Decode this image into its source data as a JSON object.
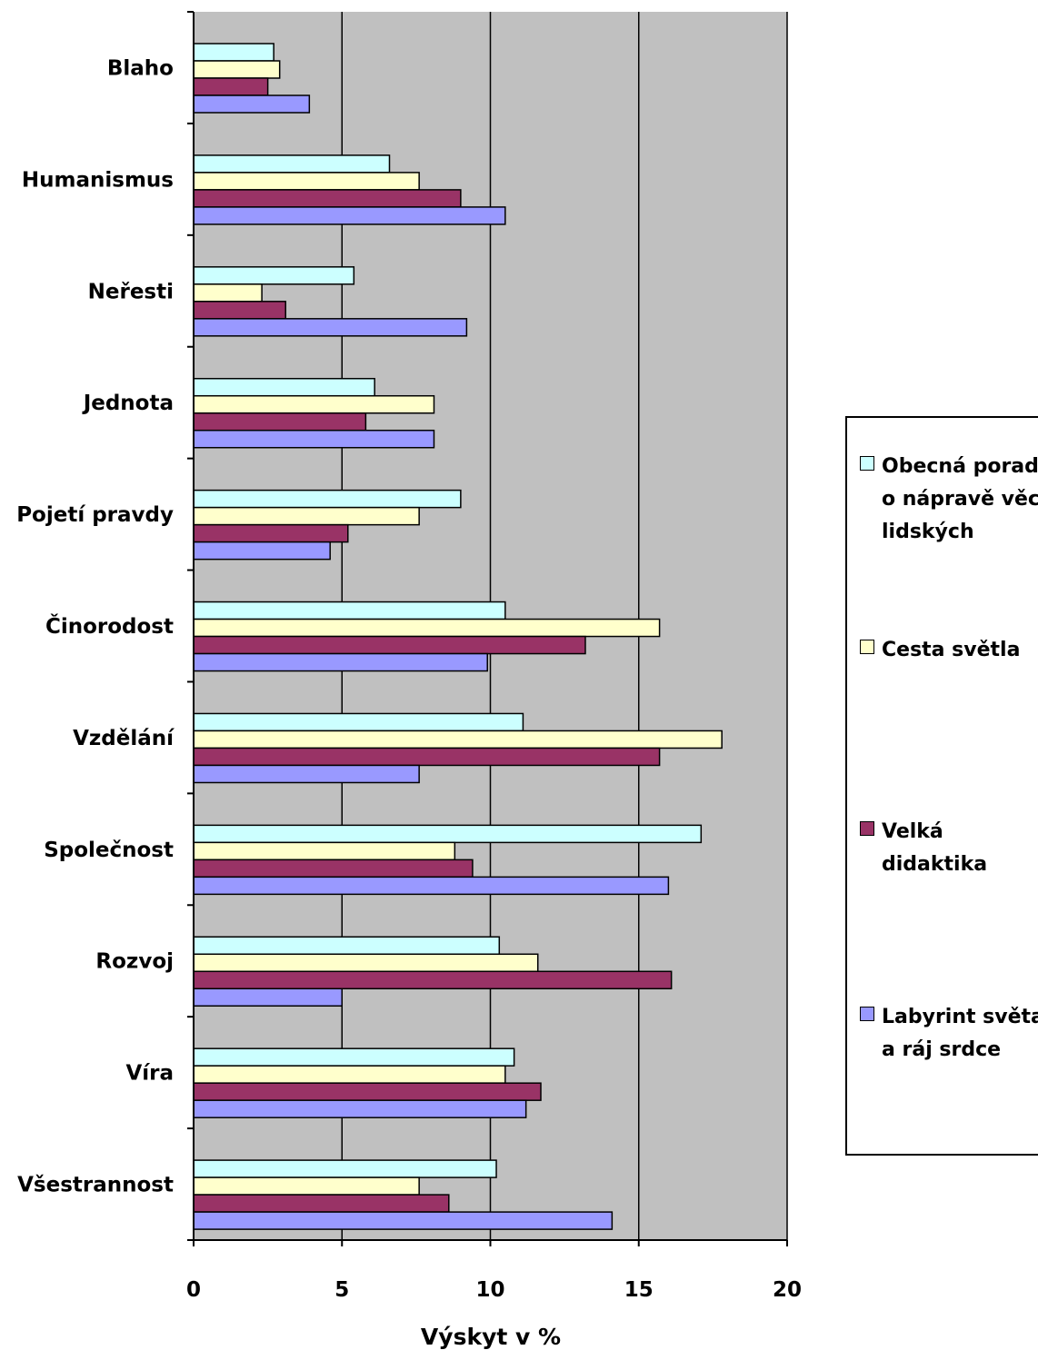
{
  "chart_data": {
    "type": "bar",
    "orientation": "horizontal",
    "categories": [
      "Blaho",
      "Humanismus",
      "Neřesti",
      "Jednota",
      "Pojetí pravdy",
      "Činorodost",
      "Vzdělání",
      "Společnost",
      "Rozvoj",
      "Víra",
      "Všestrannost"
    ],
    "series": [
      {
        "name": "Obecná porada o nápravě věcí lidských",
        "color": "#ccffff",
        "values": [
          2.7,
          6.6,
          5.4,
          6.1,
          9.0,
          10.5,
          11.1,
          17.1,
          10.3,
          10.8,
          10.2
        ]
      },
      {
        "name": "Cesta světla",
        "color": "#ffffcc",
        "values": [
          2.9,
          7.6,
          2.3,
          8.1,
          7.6,
          15.7,
          17.8,
          8.8,
          11.6,
          10.5,
          7.6
        ]
      },
      {
        "name": "Velká didaktika",
        "color": "#993366",
        "values": [
          2.5,
          9.0,
          3.1,
          5.8,
          5.2,
          13.2,
          15.7,
          9.4,
          16.1,
          11.7,
          8.6
        ]
      },
      {
        "name": "Labyrint světa a ráj srdce",
        "color": "#9999ff",
        "values": [
          3.9,
          10.5,
          9.2,
          8.1,
          4.6,
          9.9,
          7.6,
          16.0,
          5.0,
          11.2,
          14.1
        ]
      }
    ],
    "xlabel": "Výskyt v %",
    "xlim": [
      0,
      20
    ],
    "xticks": [
      "0",
      "5",
      "10",
      "15",
      "20"
    ],
    "grid": "vertical",
    "plot_background": "#c0c0c0",
    "legend_position": "right"
  }
}
